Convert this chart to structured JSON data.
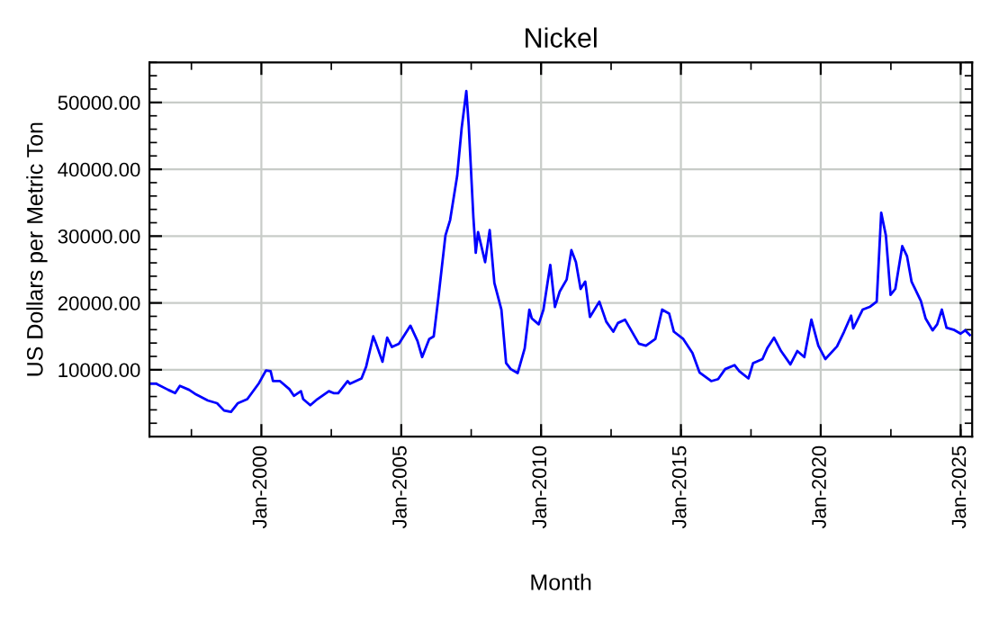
{
  "chart_data": {
    "type": "line",
    "title": "Nickel",
    "xlabel": "Month",
    "ylabel": "US Dollars per Metric Ton",
    "x": [
      "1996-01",
      "1996-04",
      "1996-09",
      "1996-12",
      "1997-02",
      "1997-06",
      "1997-09",
      "1998-02",
      "1998-06",
      "1998-09",
      "1998-12",
      "1999-03",
      "1999-07",
      "1999-12",
      "2000-03",
      "2000-05",
      "2000-06",
      "2000-09",
      "2001-01",
      "2001-03",
      "2001-06",
      "2001-07",
      "2001-10",
      "2002-01",
      "2002-06",
      "2002-08",
      "2002-10",
      "2003-02",
      "2003-03",
      "2003-08",
      "2003-10",
      "2004-01",
      "2004-02",
      "2004-05",
      "2004-07",
      "2004-09",
      "2004-12",
      "2005-05",
      "2005-08",
      "2005-10",
      "2006-01",
      "2006-03",
      "2006-05",
      "2006-08",
      "2006-10",
      "2007-01",
      "2007-03",
      "2007-05",
      "2007-06",
      "2007-08",
      "2007-09",
      "2007-10",
      "2008-01",
      "2008-03",
      "2008-05",
      "2008-08",
      "2008-10",
      "2008-12",
      "2009-03",
      "2009-06",
      "2009-08",
      "2009-09",
      "2009-12",
      "2010-02",
      "2010-05",
      "2010-07",
      "2010-09",
      "2010-12",
      "2011-02",
      "2011-04",
      "2011-06",
      "2011-08",
      "2011-10",
      "2012-02",
      "2012-05",
      "2012-08",
      "2012-10",
      "2013-01",
      "2013-07",
      "2013-10",
      "2014-02",
      "2014-05",
      "2014-08",
      "2014-10",
      "2015-02",
      "2015-06",
      "2015-09",
      "2016-02",
      "2016-05",
      "2016-08",
      "2016-12",
      "2017-02",
      "2017-06",
      "2017-08",
      "2017-12",
      "2018-02",
      "2018-05",
      "2018-08",
      "2018-12",
      "2019-03",
      "2019-06",
      "2019-09",
      "2019-12",
      "2020-03",
      "2020-08",
      "2020-11",
      "2021-02",
      "2021-03",
      "2021-07",
      "2021-10",
      "2022-01",
      "2022-03",
      "2022-05",
      "2022-07",
      "2022-09",
      "2022-12",
      "2023-02",
      "2023-04",
      "2023-08",
      "2023-10",
      "2024-01",
      "2024-03",
      "2024-05",
      "2024-07",
      "2024-10",
      "2025-01",
      "2025-03",
      "2025-05"
    ],
    "series": [
      {
        "color": "#0000ff",
        "values": [
          7900,
          7900,
          7000,
          6500,
          7600,
          7000,
          6300,
          5400,
          5000,
          3900,
          3700,
          5000,
          5600,
          8000,
          9900,
          9800,
          8300,
          8300,
          7100,
          6100,
          6800,
          5600,
          4700,
          5600,
          6800,
          6500,
          6500,
          8300,
          7900,
          8700,
          10500,
          15000,
          14100,
          11200,
          14800,
          13400,
          13900,
          16600,
          14300,
          11900,
          14600,
          15000,
          20800,
          30100,
          32400,
          39000,
          46200,
          51700,
          46600,
          32800,
          27500,
          30600,
          26100,
          30900,
          23000,
          19000,
          11000,
          10100,
          9500,
          13200,
          19000,
          17700,
          16800,
          19000,
          25700,
          19400,
          21700,
          23500,
          27900,
          26100,
          22100,
          23200,
          17900,
          20200,
          17200,
          15700,
          17000,
          17500,
          13900,
          13600,
          14600,
          19000,
          18400,
          15700,
          14600,
          12500,
          9600,
          8300,
          8600,
          10100,
          10700,
          9800,
          8700,
          11000,
          11600,
          13200,
          14800,
          12800,
          10800,
          12800,
          11900,
          17500,
          13600,
          11600,
          13500,
          15700,
          18100,
          16200,
          19000,
          19400,
          20200,
          33500,
          30100,
          21200,
          22100,
          28500,
          27000,
          23200,
          20300,
          17700,
          15900,
          16800,
          19000,
          16300,
          16000,
          15400,
          15900,
          15200
        ]
      }
    ],
    "xlim": [
      "1996-01",
      "2025-06"
    ],
    "xticks": [
      {
        "value": "2000-01",
        "label": "Jan-2000"
      },
      {
        "value": "2005-01",
        "label": "Jan-2005"
      },
      {
        "value": "2010-01",
        "label": "Jan-2010"
      },
      {
        "value": "2015-01",
        "label": "Jan-2015"
      },
      {
        "value": "2020-01",
        "label": "Jan-2020"
      },
      {
        "value": "2025-01",
        "label": "Jan-2025"
      }
    ],
    "ylim": [
      0,
      56000
    ],
    "yticks": [
      {
        "value": 10000,
        "label": "10000.00"
      },
      {
        "value": 20000,
        "label": "20000.00"
      },
      {
        "value": 30000,
        "label": "30000.00"
      },
      {
        "value": 40000,
        "label": "40000.00"
      },
      {
        "value": 50000,
        "label": "50000.00"
      }
    ],
    "grid": true,
    "line_style": "solid",
    "marker": "none"
  }
}
